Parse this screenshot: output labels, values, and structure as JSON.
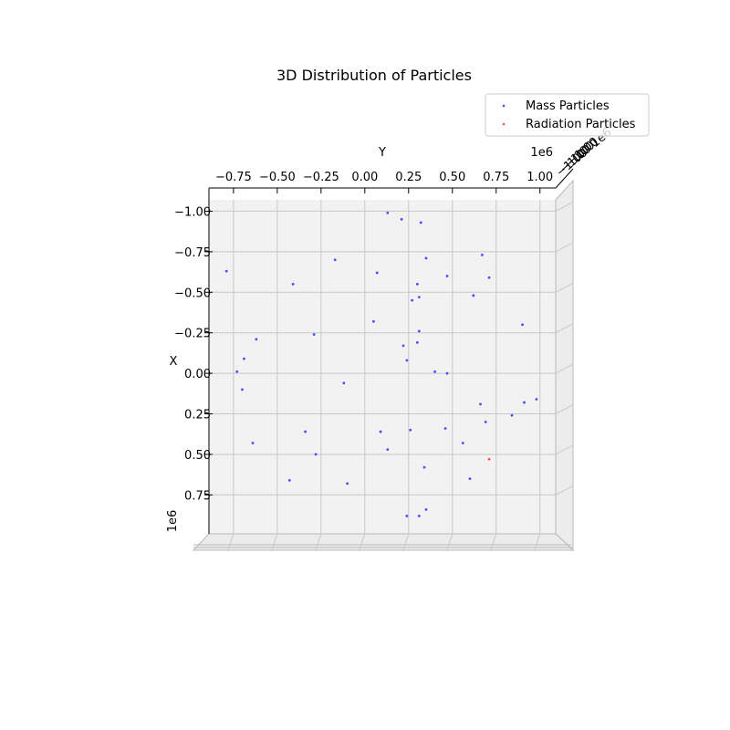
{
  "chart_data": {
    "type": "scatter",
    "title": "3D Distribution of Particles",
    "xlabel": "Y",
    "ylabel": "X",
    "x_axis_offset_label": "1e6",
    "y_axis_offset_label": "1e6",
    "z_axis_offset_label": "1e6",
    "z_axis_tick_text": "−1.00",
    "x_ticks": [
      "−0.75",
      "−0.50",
      "−0.25",
      "0.00",
      "0.25",
      "0.50",
      "0.75",
      "1.00"
    ],
    "x_tick_values": [
      -0.75,
      -0.5,
      -0.25,
      0.0,
      0.25,
      0.5,
      0.75,
      1.0
    ],
    "y_ticks": [
      "−1.00",
      "−0.75",
      "−0.50",
      "−0.25",
      "0.00",
      "0.25",
      "0.50",
      "0.75"
    ],
    "y_tick_values": [
      -1.0,
      -0.75,
      -0.5,
      -0.25,
      0.0,
      0.25,
      0.5,
      0.75
    ],
    "xlim": [
      -0.89,
      1.09
    ],
    "ylim": [
      -1.07,
      0.99
    ],
    "grid": true,
    "legend_position": "top-right",
    "series": [
      {
        "name": "Mass Particles",
        "color": "#4a4aff",
        "points": [
          [
            0.13,
            -0.99
          ],
          [
            0.21,
            -0.95
          ],
          [
            0.32,
            -0.93
          ],
          [
            -0.79,
            -0.63
          ],
          [
            -0.17,
            -0.7
          ],
          [
            0.35,
            -0.71
          ],
          [
            0.67,
            -0.73
          ],
          [
            -0.41,
            -0.55
          ],
          [
            0.07,
            -0.62
          ],
          [
            0.3,
            -0.55
          ],
          [
            0.47,
            -0.6
          ],
          [
            0.71,
            -0.59
          ],
          [
            0.27,
            -0.45
          ],
          [
            0.31,
            -0.47
          ],
          [
            0.62,
            -0.48
          ],
          [
            0.05,
            -0.32
          ],
          [
            -0.29,
            -0.24
          ],
          [
            -0.62,
            -0.21
          ],
          [
            0.31,
            -0.26
          ],
          [
            0.9,
            -0.3
          ],
          [
            0.22,
            -0.17
          ],
          [
            0.3,
            -0.19
          ],
          [
            -0.69,
            -0.09
          ],
          [
            0.24,
            -0.08
          ],
          [
            -0.73,
            -0.01
          ],
          [
            0.4,
            -0.01
          ],
          [
            0.47,
            0.0
          ],
          [
            -0.12,
            0.06
          ],
          [
            -0.7,
            0.1
          ],
          [
            0.66,
            0.19
          ],
          [
            0.91,
            0.18
          ],
          [
            0.98,
            0.16
          ],
          [
            0.84,
            0.26
          ],
          [
            0.69,
            0.3
          ],
          [
            -0.34,
            0.36
          ],
          [
            0.09,
            0.36
          ],
          [
            0.26,
            0.35
          ],
          [
            0.46,
            0.34
          ],
          [
            0.56,
            0.43
          ],
          [
            -0.64,
            0.43
          ],
          [
            -0.28,
            0.5
          ],
          [
            0.13,
            0.47
          ],
          [
            0.34,
            0.58
          ],
          [
            0.6,
            0.65
          ],
          [
            -0.43,
            0.66
          ],
          [
            -0.1,
            0.68
          ],
          [
            0.35,
            0.84
          ],
          [
            0.24,
            0.88
          ],
          [
            0.31,
            0.88
          ]
        ]
      },
      {
        "name": "Radiation Particles",
        "color": "#ff4a4a",
        "points": [
          [
            0.71,
            0.53
          ]
        ]
      }
    ]
  }
}
